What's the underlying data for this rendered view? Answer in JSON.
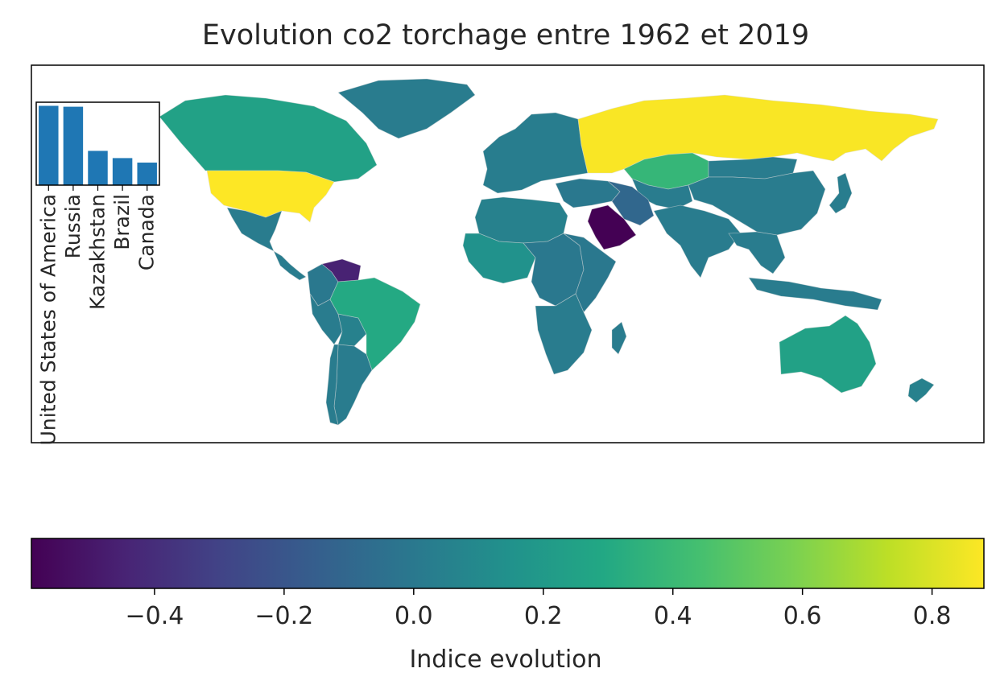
{
  "chart_data": [
    {
      "type": "choropleth",
      "title": "Evolution co2 torchage entre 1962 et 2019",
      "colormap": "viridis",
      "colorbar": {
        "label": "Indice evolution",
        "range": [
          -0.59,
          0.88
        ],
        "ticks": [
          -0.4,
          -0.2,
          0.0,
          0.2,
          0.4,
          0.6,
          0.8
        ],
        "tick_labels": [
          "−0.4",
          "−0.2",
          "0.0",
          "0.2",
          "0.4",
          "0.6",
          "0.8"
        ]
      },
      "regions": [
        {
          "name": "United States of America",
          "value": 0.88
        },
        {
          "name": "Russia",
          "value": 0.87
        },
        {
          "name": "Canada",
          "value": 0.25
        },
        {
          "name": "Greenland",
          "value": 0.02
        },
        {
          "name": "Mexico",
          "value": 0.02
        },
        {
          "name": "Central America",
          "value": 0.02
        },
        {
          "name": "Colombia",
          "value": 0.0
        },
        {
          "name": "Venezuela",
          "value": -0.45
        },
        {
          "name": "Peru",
          "value": 0.02
        },
        {
          "name": "Bolivia",
          "value": 0.05
        },
        {
          "name": "Brazil",
          "value": 0.3
        },
        {
          "name": "Argentina",
          "value": 0.02
        },
        {
          "name": "Chile",
          "value": 0.02
        },
        {
          "name": "Europe",
          "value": 0.03
        },
        {
          "name": "Kazakhstan",
          "value": 0.38
        },
        {
          "name": "Saudi Arabia",
          "value": -0.59
        },
        {
          "name": "Iran",
          "value": -0.1
        },
        {
          "name": "Middle East",
          "value": 0.0
        },
        {
          "name": "North Africa",
          "value": 0.05
        },
        {
          "name": "West Africa",
          "value": 0.15
        },
        {
          "name": "Central Africa",
          "value": 0.0
        },
        {
          "name": "East Africa",
          "value": 0.0
        },
        {
          "name": "Southern Africa",
          "value": 0.02
        },
        {
          "name": "South Asia",
          "value": 0.02
        },
        {
          "name": "China",
          "value": 0.02
        },
        {
          "name": "Central Asia",
          "value": 0.02
        },
        {
          "name": "Mongolia",
          "value": 0.02
        },
        {
          "name": "Southeast Asia",
          "value": 0.02
        },
        {
          "name": "Japan",
          "value": 0.03
        },
        {
          "name": "Indonesia",
          "value": 0.02
        },
        {
          "name": "Australia",
          "value": 0.25
        },
        {
          "name": "New Zealand",
          "value": 0.05
        }
      ]
    },
    {
      "type": "bar",
      "categories": [
        "United States of America",
        "Russia",
        "Kazakhstan",
        "Brazil",
        "Canada"
      ],
      "values": [
        0.88,
        0.87,
        0.38,
        0.3,
        0.25
      ],
      "ylim": [
        0,
        0.92
      ]
    }
  ]
}
